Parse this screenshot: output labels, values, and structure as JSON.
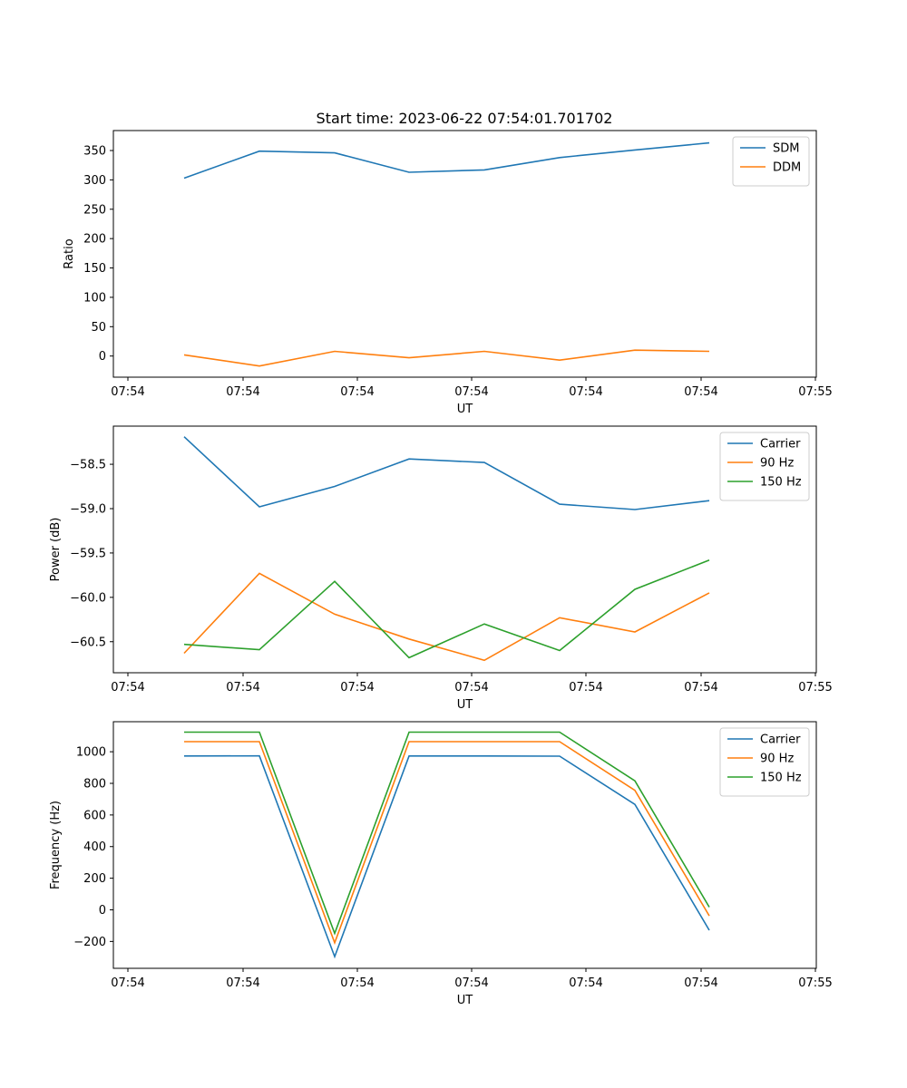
{
  "figure_title": "Start time: 2023-06-22 07:54:01.701702",
  "colors": {
    "blue": "#1f77b4",
    "orange": "#ff7f0e",
    "green": "#2ca02c"
  },
  "chart_data": [
    {
      "type": "line",
      "title": "Start time: 2023-06-22 07:54:01.701702",
      "xlabel": "UT",
      "ylabel": "Ratio",
      "x_tick_labels": [
        "07:54",
        "07:54",
        "07:54",
        "07:54",
        "07:54",
        "07:54",
        "07:55"
      ],
      "y_ticks": [
        0,
        50,
        100,
        150,
        200,
        250,
        300,
        350
      ],
      "ylim": [
        -36,
        384
      ],
      "legend_position": "top-right",
      "grid": false,
      "series": [
        {
          "name": "SDM",
          "color": "#1f77b4",
          "values": [
            303,
            349,
            346,
            313,
            317,
            338,
            351,
            363
          ]
        },
        {
          "name": "DDM",
          "color": "#ff7f0e",
          "values": [
            2,
            -17,
            8,
            -3,
            8,
            -7,
            10,
            8
          ]
        }
      ]
    },
    {
      "type": "line",
      "title": "",
      "xlabel": "UT",
      "ylabel": "Power (dB)",
      "x_tick_labels": [
        "07:54",
        "07:54",
        "07:54",
        "07:54",
        "07:54",
        "07:54",
        "07:55"
      ],
      "y_ticks": [
        -60.5,
        -60.0,
        -59.5,
        -59.0,
        -58.5
      ],
      "y_tick_labels": [
        "−60.5",
        "−60.0",
        "−59.5",
        "−59.0",
        "−58.5"
      ],
      "ylim": [
        -60.85,
        -58.07
      ],
      "legend_position": "top-right",
      "grid": false,
      "series": [
        {
          "name": "Carrier",
          "color": "#1f77b4",
          "values": [
            -58.19,
            -58.98,
            -58.75,
            -58.44,
            -58.48,
            -58.95,
            -59.01,
            -58.91
          ]
        },
        {
          "name": "90 Hz",
          "color": "#ff7f0e",
          "values": [
            -60.63,
            -59.73,
            -60.19,
            -60.47,
            -60.71,
            -60.23,
            -60.39,
            -59.95
          ]
        },
        {
          "name": "150 Hz",
          "color": "#2ca02c",
          "values": [
            -60.53,
            -60.59,
            -59.82,
            -60.68,
            -60.3,
            -60.6,
            -59.91,
            -59.58
          ]
        }
      ]
    },
    {
      "type": "line",
      "title": "",
      "xlabel": "UT",
      "ylabel": "Frequency (Hz)",
      "x_tick_labels": [
        "07:54",
        "07:54",
        "07:54",
        "07:54",
        "07:54",
        "07:54",
        "07:55"
      ],
      "y_ticks": [
        -200,
        0,
        200,
        400,
        600,
        800,
        1000
      ],
      "y_tick_labels": [
        "−200",
        "0",
        "200",
        "400",
        "600",
        "800",
        "1000"
      ],
      "ylim": [
        -370,
        1190
      ],
      "legend_position": "top-right",
      "grid": false,
      "series": [
        {
          "name": "Carrier",
          "color": "#1f77b4",
          "values": [
            973,
            974,
            -296,
            973,
            973,
            972,
            667,
            -129
          ]
        },
        {
          "name": "90 Hz",
          "color": "#ff7f0e",
          "values": [
            1064,
            1064,
            -208,
            1064,
            1064,
            1064,
            756,
            -38
          ]
        },
        {
          "name": "150 Hz",
          "color": "#2ca02c",
          "values": [
            1124,
            1124,
            -149,
            1124,
            1124,
            1124,
            816,
            17
          ]
        }
      ]
    }
  ]
}
